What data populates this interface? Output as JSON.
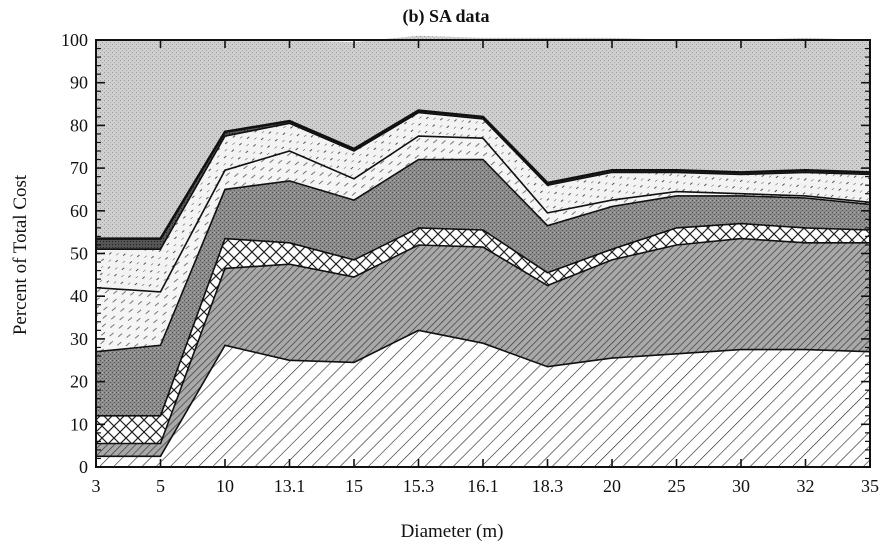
{
  "chart_data": {
    "type": "area",
    "stacked": true,
    "title": "(b) SA data",
    "xlabel": "Diameter (m)",
    "ylabel": "Percent of Total Cost",
    "ylim": [
      0,
      100
    ],
    "yticks": [
      0,
      10,
      20,
      30,
      40,
      50,
      60,
      70,
      80,
      90,
      100
    ],
    "categories": [
      "3",
      "5",
      "10",
      "13.1",
      "15",
      "15.3",
      "16.1",
      "18.3",
      "20",
      "25",
      "30",
      "32",
      "35"
    ],
    "series": [
      {
        "values": [
          2.5,
          2.5,
          28.5,
          25,
          24.5,
          32,
          29,
          23.5,
          25.5,
          26.5,
          27.5,
          27.5,
          27
        ],
        "fill": "hatch-diag-right"
      },
      {
        "values": [
          3,
          3,
          18,
          22.5,
          20,
          20,
          22.5,
          19,
          23,
          25.5,
          26,
          25,
          25.5
        ],
        "fill": "hatch-diag-left-dark"
      },
      {
        "values": [
          6.5,
          6.5,
          7,
          5,
          4,
          4,
          4,
          3,
          2.5,
          4,
          3.5,
          3.5,
          3
        ],
        "fill": "crosshatch"
      },
      {
        "values": [
          15,
          16.5,
          11.5,
          14.5,
          14,
          16,
          16.5,
          11,
          10,
          7.5,
          6.5,
          7,
          6
        ],
        "fill": "dark-dots"
      },
      {
        "values": [
          15,
          12.5,
          4.5,
          7,
          5,
          5.5,
          5,
          3,
          1.5,
          1,
          0.5,
          0.5,
          0.5
        ],
        "fill": "light-dash"
      },
      {
        "values": [
          9,
          10,
          8,
          6.5,
          6.5,
          5.5,
          4.5,
          6.5,
          6.5,
          4.5,
          4.5,
          5.5,
          6.5
        ],
        "fill": "dotted-dash"
      },
      {
        "values": [
          2.5,
          2.5,
          1,
          0.5,
          0.5,
          0.5,
          0.5,
          0.5,
          0.5,
          0.5,
          0.5,
          0.5,
          0.5
        ],
        "fill": "dark-band"
      },
      {
        "values": [
          46.5,
          46.5,
          21.5,
          19,
          25,
          17.5,
          18.5,
          34,
          31,
          30.5,
          31,
          31,
          31
        ],
        "fill": "light-stipple"
      }
    ],
    "grid": false,
    "legend": "none"
  }
}
